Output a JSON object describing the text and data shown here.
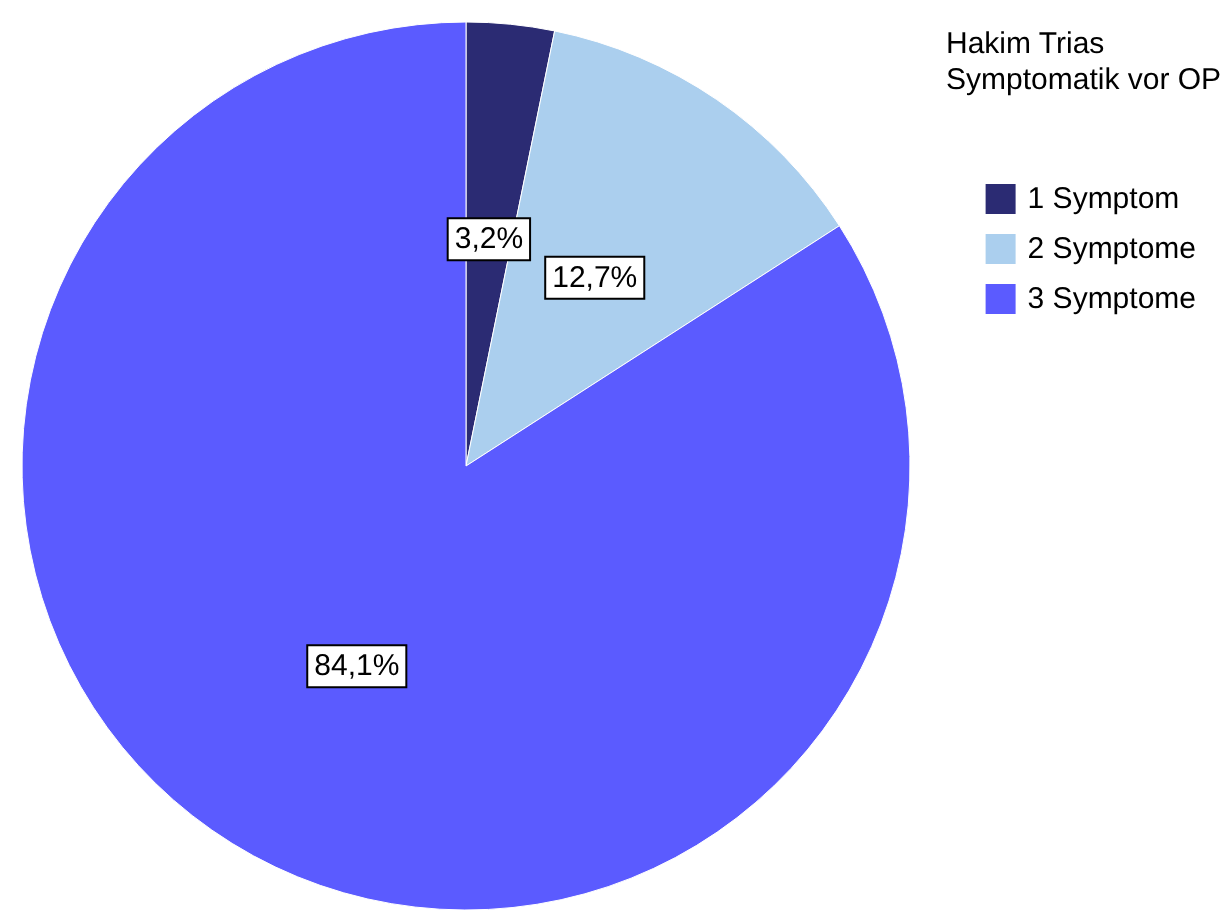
{
  "chart_data": {
    "type": "pie",
    "legend_title": "Hakim Trias Symptomatik vor OP",
    "categories": [
      "1 Symptom",
      "2 Symptome",
      "3 Symptome"
    ],
    "values": [
      3.2,
      12.7,
      84.1
    ],
    "value_labels": [
      "3,2%",
      "12,7%",
      "84,1%"
    ],
    "colors": [
      "#2b2b73",
      "#abcfee",
      "#5b5bff"
    ],
    "legend": "top right"
  }
}
